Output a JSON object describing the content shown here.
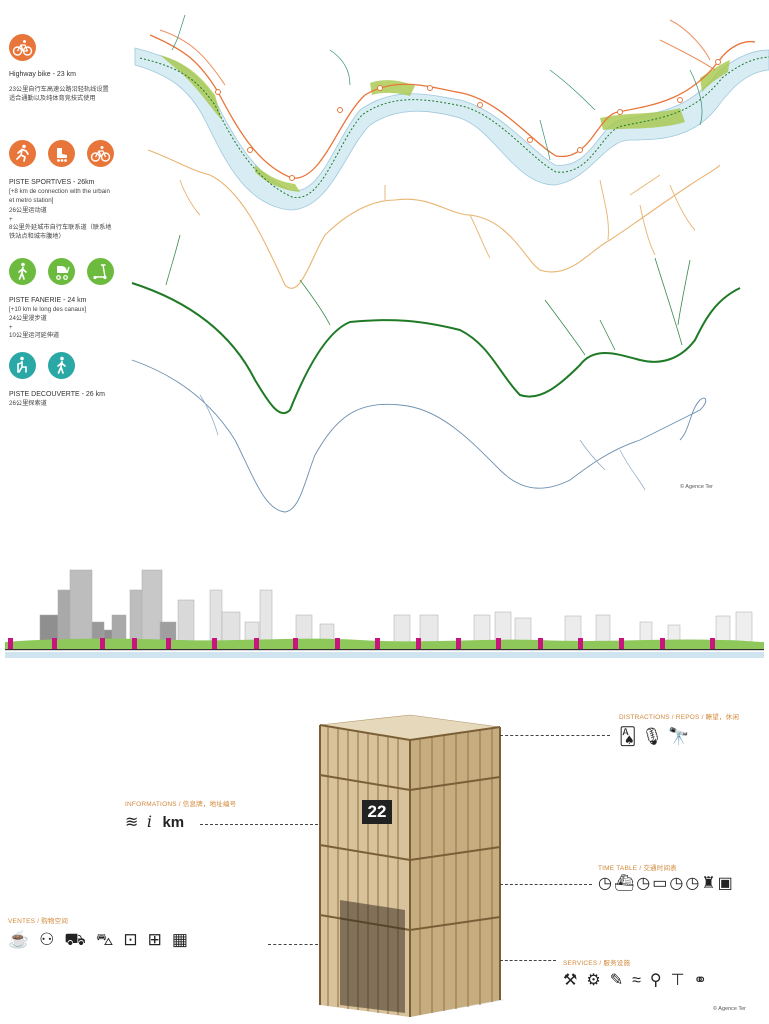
{
  "legend": {
    "highway": {
      "title": "Highway bike - 23 km",
      "desc1": "23公里自行车高速公路沿轻轨线设置",
      "desc2": "适合通勤以及纯体育竞技式使用",
      "icon": "bike-icon"
    },
    "sportives": {
      "title": "PISTE SPORTIVES - 26km",
      "line1": "[+8 km de connection with the urbain",
      "line2": "et metro station]",
      "line3": "26公里运动道",
      "line4": "+",
      "line5": "8公里外延城市自行车联系道（联系地",
      "line6": "铁站点和城市腹地）",
      "icons": [
        "runner-icon",
        "rollerblade-icon",
        "bike-icon"
      ]
    },
    "fanerie": {
      "title": "PISTE FANERIE - 24 km",
      "line1": "[+10 km le long des canaux]",
      "line2": "24公里漫步道",
      "line3": "+",
      "line4": "10公里运河延伸道",
      "icons": [
        "walker-icon",
        "stroller-icon",
        "scooter-icon"
      ]
    },
    "decouverte": {
      "title": "PISTE DECOUVERTE - 26 km",
      "line1": "26公里探索道",
      "icons": [
        "sitting-person-icon",
        "walker-icon"
      ]
    }
  },
  "credit_top": "© Agence Ter",
  "credit_bottom": "© Agence Ter",
  "pavilion": {
    "number": "22",
    "distractions_label": "DISTRACTIONS / REPOS / 瞭望，休闲",
    "informations_label": "INFORMATIONS / 信息牌，地址编号",
    "info_unit": "km",
    "timetable_label": "TIME TABLE / 交通时间表",
    "ventes_label": "VENTES / 购物空间",
    "services_label": "SERVICES / 服务设施"
  },
  "colors": {
    "orange": "#e8753a",
    "green": "#6cbb3e",
    "teal": "#2aa8a6",
    "dark_green": "#1f7a26",
    "river": "#d5ebf3",
    "category_label": "#d2883a"
  }
}
